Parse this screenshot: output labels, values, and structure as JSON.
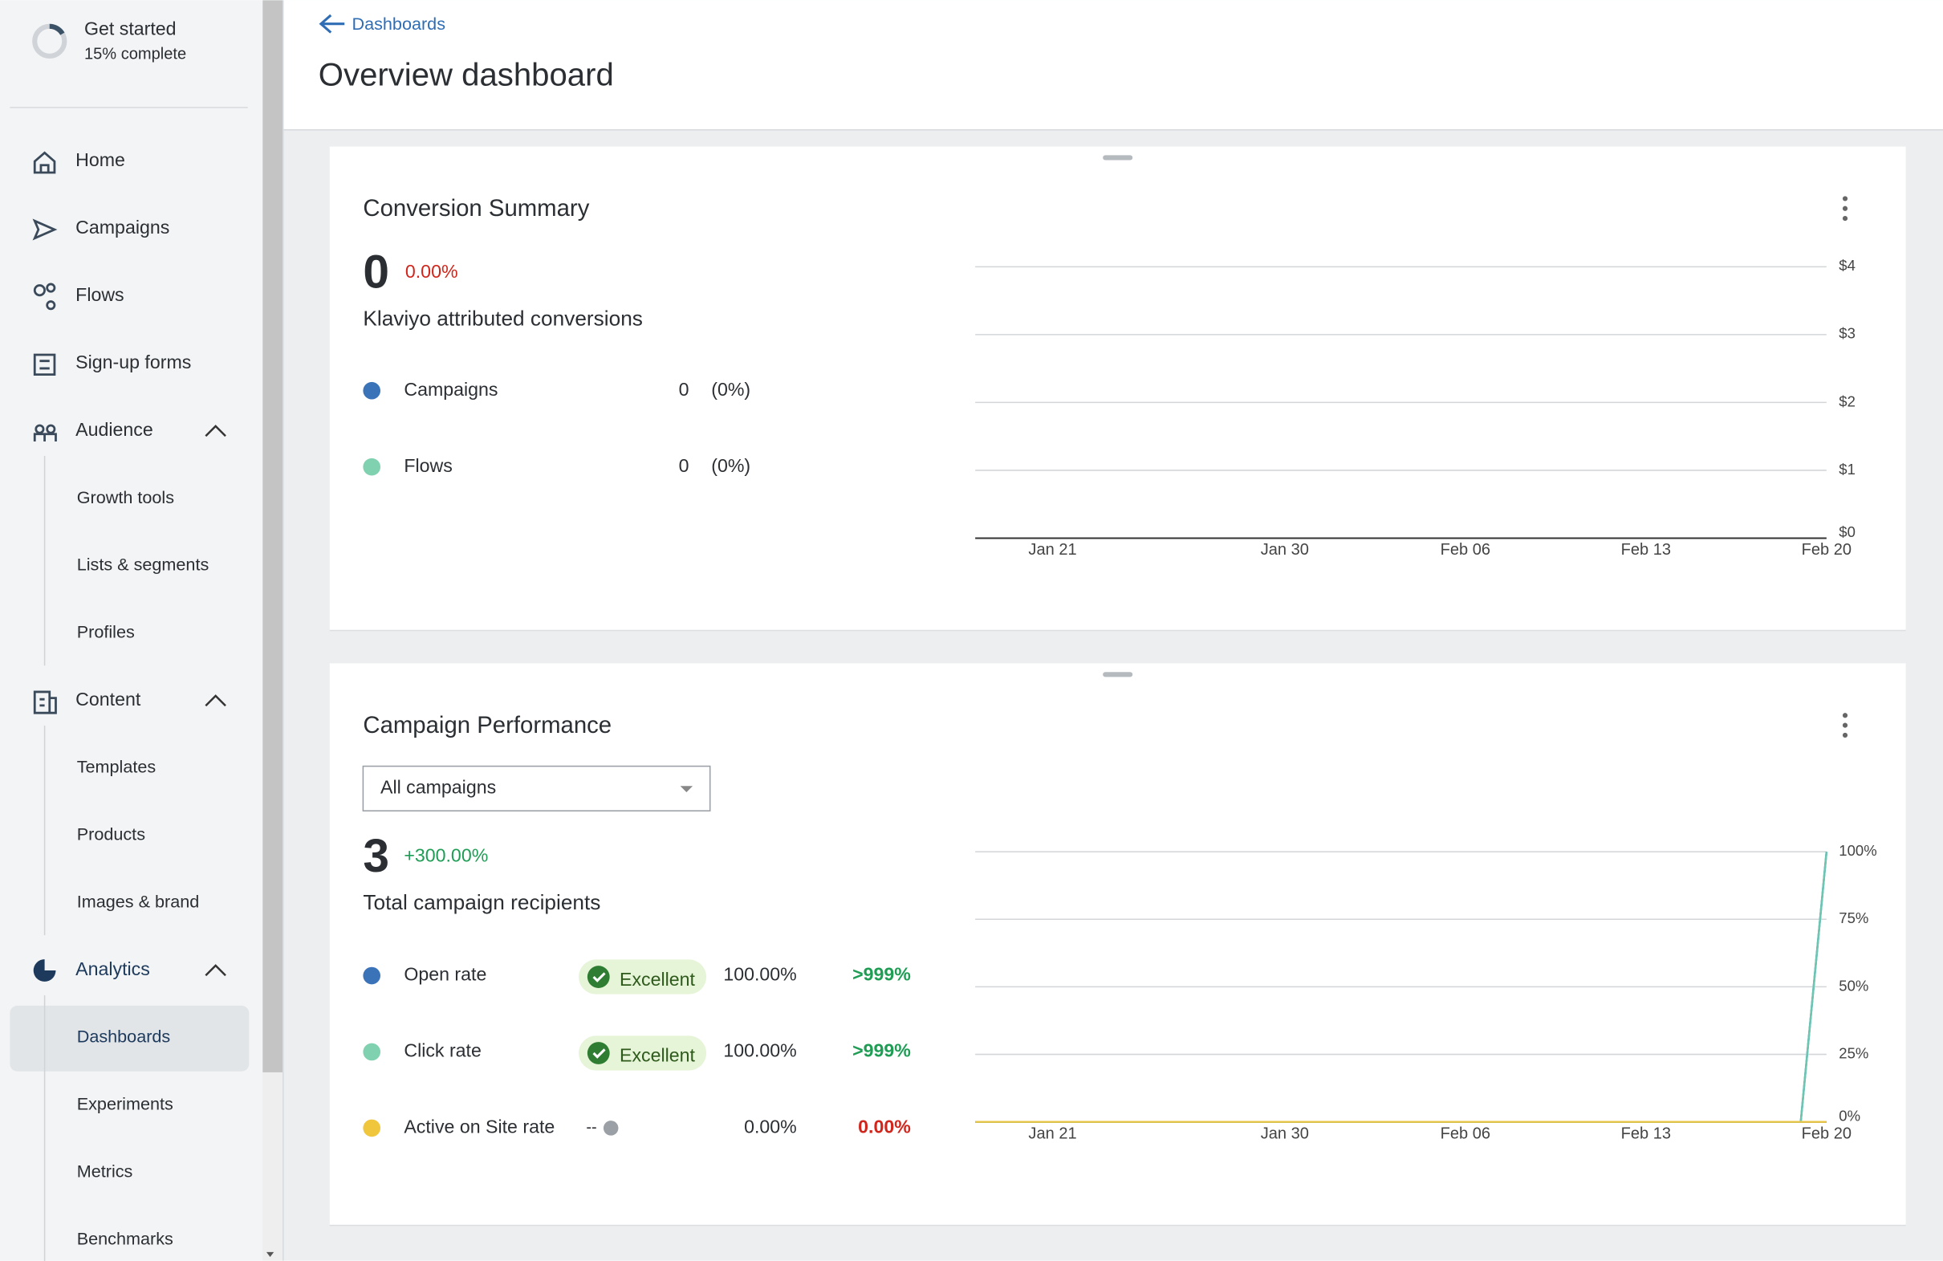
{
  "sidebar": {
    "get_started": {
      "title": "Get started",
      "progress": "15% complete"
    },
    "nav": [
      {
        "label": "Home",
        "icon": "home"
      },
      {
        "label": "Campaigns",
        "icon": "send"
      },
      {
        "label": "Flows",
        "icon": "flows"
      },
      {
        "label": "Sign-up forms",
        "icon": "form"
      },
      {
        "label": "Audience",
        "icon": "people",
        "children": [
          "Growth tools",
          "Lists & segments",
          "Profiles"
        ]
      },
      {
        "label": "Content",
        "icon": "content",
        "children": [
          "Templates",
          "Products",
          "Images & brand"
        ]
      },
      {
        "label": "Analytics",
        "icon": "pie",
        "active": true,
        "children": [
          "Dashboards",
          "Experiments",
          "Metrics",
          "Benchmarks"
        ]
      }
    ],
    "active_child": "Dashboards"
  },
  "header": {
    "back": "Dashboards",
    "title": "Overview dashboard"
  },
  "cards": [
    {
      "title": "Conversion Summary",
      "big_value": "0",
      "change": "0.00%",
      "change_color": "#d0261c",
      "subtitle": "Klaviyo attributed conversions",
      "rows": [
        {
          "name": "Campaigns",
          "color": "#3b73b9",
          "value": "0",
          "share": "(0%)"
        },
        {
          "name": "Flows",
          "color": "#7fd1b0",
          "value": "0",
          "share": "(0%)"
        }
      ],
      "chart": {
        "type": "line",
        "xlim": [
          "Jan 18",
          "Feb 20"
        ],
        "xticks": [
          "Jan 21",
          "Jan 30",
          "Feb 06",
          "Feb 13",
          "Feb 20"
        ],
        "ylim": [
          0,
          4
        ],
        "yticks": [
          {
            "value": 0,
            "label": "$0"
          },
          {
            "value": 1,
            "label": "$1"
          },
          {
            "value": 2,
            "label": "$2"
          },
          {
            "value": 3,
            "label": "$3"
          },
          {
            "value": 4,
            "label": "$4"
          }
        ],
        "grid": true,
        "series": []
      }
    },
    {
      "title": "Campaign Performance",
      "dropdown": "All campaigns",
      "big_value": "3",
      "change": "+300.00%",
      "change_color": "#1f9d55",
      "subtitle": "Total campaign recipients",
      "rows": [
        {
          "name": "Open rate",
          "color": "#3b73b9",
          "badge": "Excellent",
          "value": "100.00%",
          "change": ">999%",
          "change_color": "#1f9d55"
        },
        {
          "name": "Click rate",
          "color": "#7fd1b0",
          "badge": "Excellent",
          "value": "100.00%",
          "change": ">999%",
          "change_color": "#1f9d55"
        },
        {
          "name": "Active on Site rate",
          "color": "#f0c63c",
          "benchmark": "--",
          "value": "0.00%",
          "change": "0.00%",
          "change_color": "#d0261c"
        }
      ],
      "chart": {
        "type": "line",
        "xlim": [
          "Jan 18",
          "Feb 20"
        ],
        "xticks": [
          "Jan 21",
          "Jan 30",
          "Feb 06",
          "Feb 13",
          "Feb 20"
        ],
        "ylim": [
          0,
          100
        ],
        "yticks": [
          {
            "value": 0,
            "label": "0%"
          },
          {
            "value": 25,
            "label": "25%"
          },
          {
            "value": 50,
            "label": "50%"
          },
          {
            "value": 75,
            "label": "75%"
          },
          {
            "value": 100,
            "label": "100%"
          }
        ],
        "grid": true,
        "series": [
          {
            "name": "Open rate",
            "color": "#3b73b9",
            "x": [
              "Jan 18",
              "Feb 19",
              "Feb 20"
            ],
            "values": [
              0,
              0,
              100
            ]
          },
          {
            "name": "Click rate",
            "color": "#6cc7b0",
            "x": [
              "Jan 18",
              "Feb 19",
              "Feb 20"
            ],
            "values": [
              0,
              0,
              100
            ]
          },
          {
            "name": "Active on Site rate",
            "color": "#e8c547",
            "x": [
              "Jan 18",
              "Feb 19",
              "Feb 20"
            ],
            "values": [
              0,
              0,
              0
            ]
          }
        ]
      }
    }
  ]
}
